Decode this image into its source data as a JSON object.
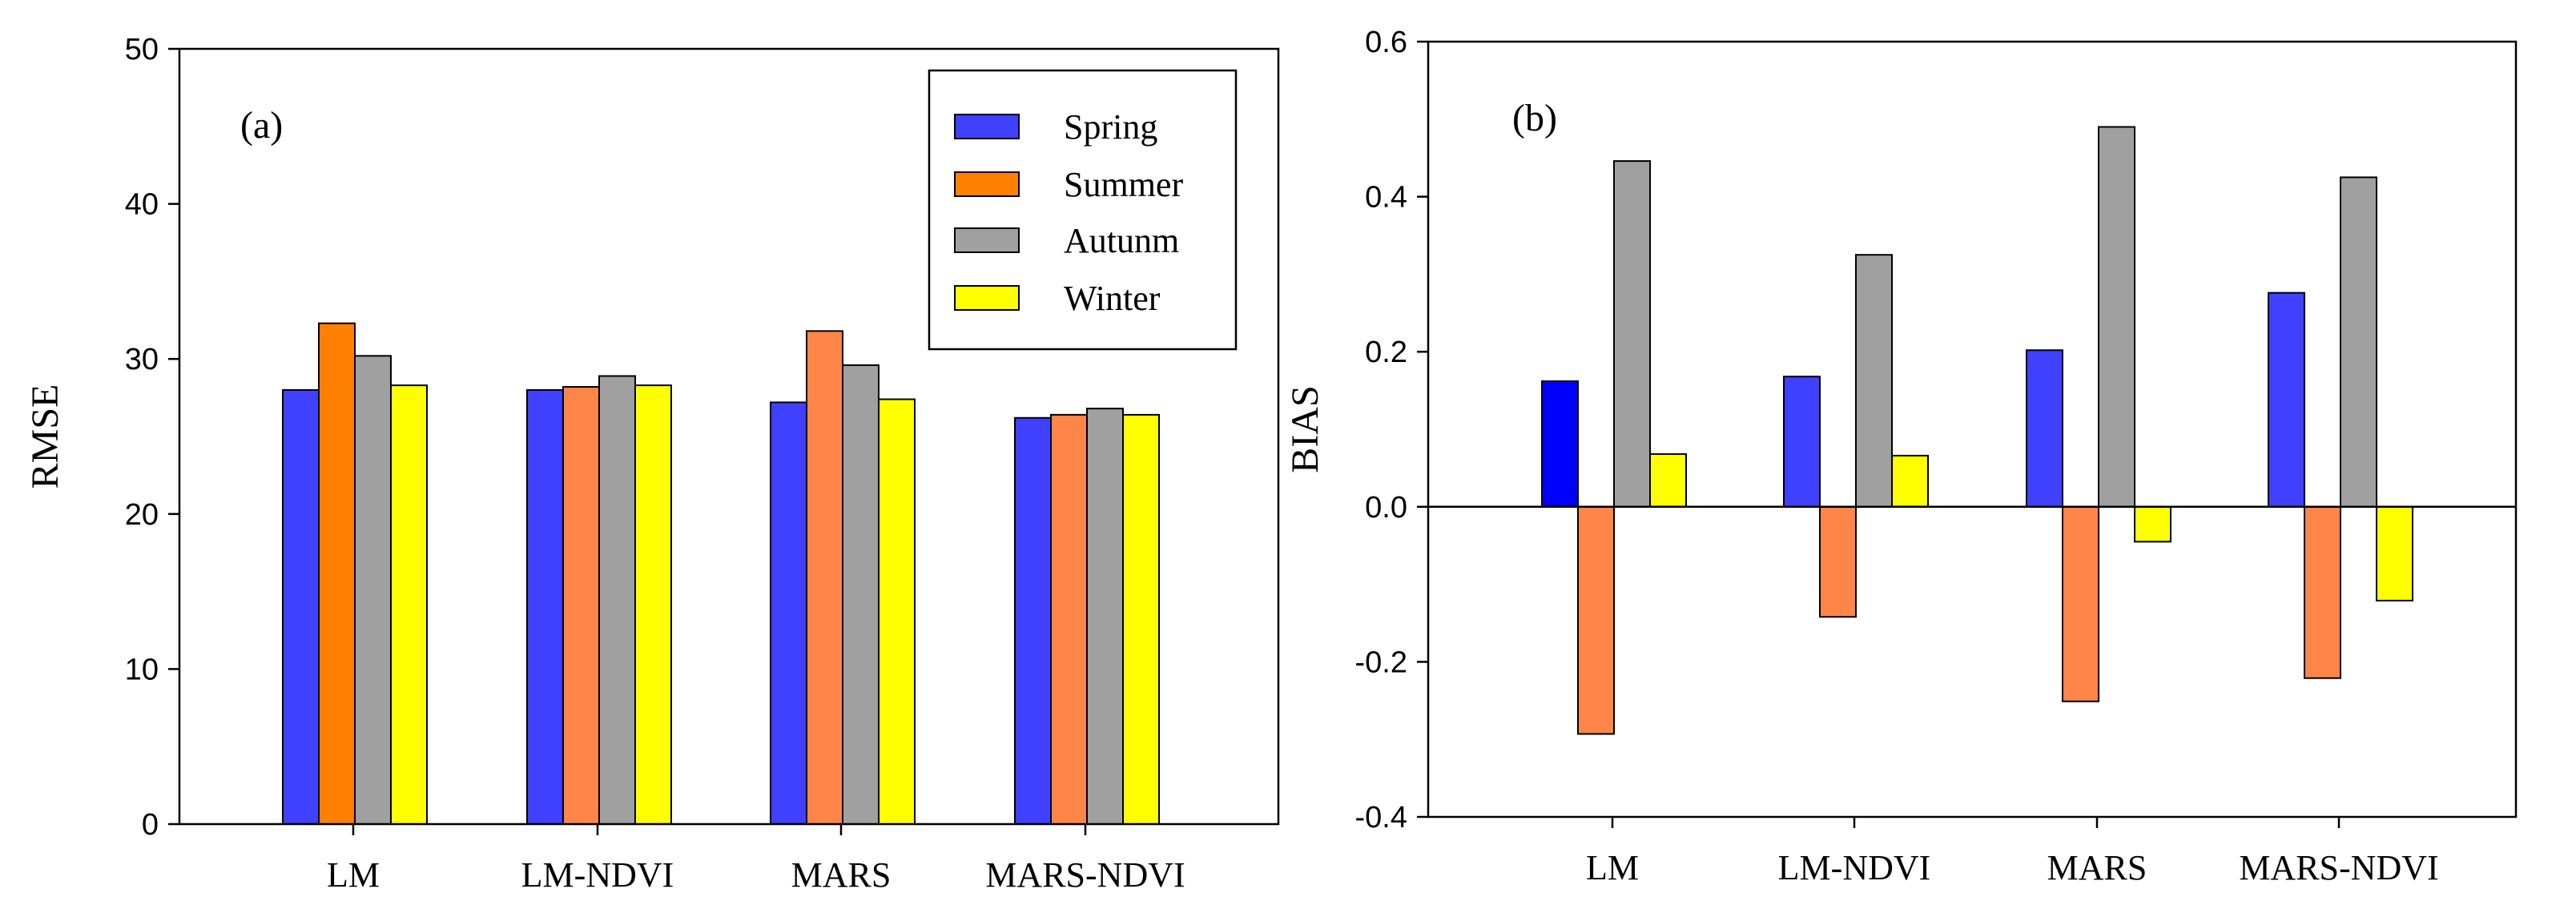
{
  "chart_data": [
    {
      "type": "bar",
      "panel_label": "(a)",
      "ylabel": "RMSE",
      "xlabel": "",
      "ylim": [
        0,
        50
      ],
      "yticks": [
        "0",
        "10",
        "20",
        "30",
        "40",
        "50"
      ],
      "categories": [
        "LM",
        "LM-NDVI",
        "MARS",
        "MARS-NDVI"
      ],
      "legend_position": "top-right",
      "series": [
        {
          "name": "Spring",
          "colors": [
            "#4040ff",
            "#4040ff",
            "#4040ff",
            "#4040ff"
          ],
          "values": [
            28.0,
            28.0,
            27.2,
            26.2
          ]
        },
        {
          "name": "Summer",
          "colors": [
            "#ff8000",
            "#ff8548",
            "#ff8548",
            "#ff8548"
          ],
          "values": [
            32.3,
            28.2,
            31.8,
            26.4
          ]
        },
        {
          "name": "Autunm",
          "colors": [
            "#a0a0a0",
            "#a0a0a0",
            "#a0a0a0",
            "#a0a0a0"
          ],
          "values": [
            30.2,
            28.9,
            29.6,
            26.8
          ]
        },
        {
          "name": "Winter",
          "colors": [
            "#ffff00",
            "#ffff00",
            "#ffff00",
            "#ffff00"
          ],
          "values": [
            28.3,
            28.3,
            27.4,
            26.4
          ]
        }
      ]
    },
    {
      "type": "bar",
      "panel_label": "(b)",
      "ylabel": "BIAS",
      "xlabel": "",
      "ylim": [
        -0.4,
        0.6
      ],
      "yticks": [
        "-0.4",
        "-0.2",
        "0.0",
        "0.2",
        "0.4",
        "0.6"
      ],
      "categories": [
        "LM",
        "LM-NDVI",
        "MARS",
        "MARS-NDVI"
      ],
      "series": [
        {
          "name": "Spring",
          "colors": [
            "#0000ff",
            "#4040ff",
            "#4040ff",
            "#4040ff"
          ],
          "values": [
            0.162,
            0.168,
            0.202,
            0.276
          ]
        },
        {
          "name": "Summer",
          "colors": [
            "#ff8548",
            "#ff8548",
            "#ff8548",
            "#ff8548"
          ],
          "values": [
            -0.293,
            -0.142,
            -0.251,
            -0.221
          ]
        },
        {
          "name": "Autunm",
          "colors": [
            "#a0a0a0",
            "#a0a0a0",
            "#a0a0a0",
            "#a0a0a0"
          ],
          "values": [
            0.446,
            0.325,
            0.49,
            0.425
          ]
        },
        {
          "name": "Winter",
          "colors": [
            "#ffff00",
            "#ffff00",
            "#ffff00",
            "#ffff00"
          ],
          "values": [
            0.068,
            0.066,
            -0.045,
            -0.121
          ]
        }
      ]
    }
  ]
}
